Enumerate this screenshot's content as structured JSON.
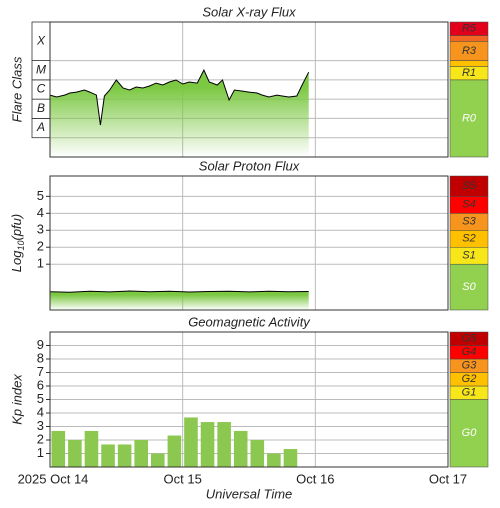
{
  "chart_data": [
    {
      "type": "line",
      "title": "Solar X-ray Flux",
      "ylabel": "Flare Class",
      "log_scale": true,
      "ylim": [
        1e-09,
        0.01
      ],
      "yticks": [
        1e-08,
        1e-07,
        1e-06,
        1e-05,
        0.0001
      ],
      "classes": [
        {
          "value": 1e-08,
          "label": "A"
        },
        {
          "value": 1e-07,
          "label": "B"
        },
        {
          "value": 1e-06,
          "label": "C"
        },
        {
          "value": 1e-05,
          "label": "M"
        },
        {
          "value": 0.0001,
          "label": "X"
        }
      ],
      "xlim": [
        0,
        3
      ],
      "xticks": [
        1,
        2
      ],
      "x": [
        0,
        0.05,
        0.11,
        0.15,
        0.2,
        0.26,
        0.3,
        0.35,
        0.38,
        0.41,
        0.45,
        0.5,
        0.55,
        0.6,
        0.65,
        0.7,
        0.75,
        0.8,
        0.85,
        0.9,
        0.95,
        1.0,
        1.05,
        1.11,
        1.16,
        1.2,
        1.26,
        1.3,
        1.35,
        1.39,
        1.45,
        1.5,
        1.56,
        1.6,
        1.65,
        1.71,
        1.75,
        1.8,
        1.86,
        1.9,
        1.95
      ],
      "values": [
        1.63e-06,
        1.29e-06,
        1.63e-06,
        2.07e-06,
        2.33e-06,
        2.97e-06,
        2.33e-06,
        1.63e-06,
        4.5e-08,
        1.45e-06,
        2.97e-06,
        9.8e-06,
        3.76e-06,
        2.97e-06,
        4.24e-06,
        3.76e-06,
        4.78e-06,
        6.8e-06,
        5.4e-06,
        7.7e-06,
        9.8e-06,
        6.1e-06,
        7.7e-06,
        6.8e-06,
        3.2e-05,
        7.7e-06,
        5.4e-06,
        9.8e-06,
        9e-07,
        2.97e-06,
        2.6e-06,
        2.33e-06,
        2.07e-06,
        1.63e-06,
        1.29e-06,
        1.63e-06,
        1.45e-06,
        1.29e-06,
        1.45e-06,
        5.4e-06,
        2.5e-05
      ],
      "color": "#000000",
      "fill_color": "#7cc843",
      "scale": [
        {
          "from": 1e-09,
          "label": "R0",
          "color": "#92d050"
        },
        {
          "from": 1e-05,
          "label": "R1",
          "color": "#f6e61a"
        },
        {
          "from": 5e-05,
          "color": "#ffc000"
        },
        {
          "from": 0.0001,
          "label": "R3",
          "color": "#f7941d"
        },
        {
          "from": 0.001,
          "color": "#f26522"
        },
        {
          "from": 0.002,
          "label": "R5",
          "color": "#e3001b"
        }
      ]
    },
    {
      "type": "line",
      "title": "Solar Proton Flux",
      "ylabel": {
        "main": "Log",
        "sub": "10",
        "unit": "(pfu)"
      },
      "ylim": [
        -1.7,
        6.2
      ],
      "yticks": [
        1,
        2,
        3,
        4,
        5
      ],
      "xlim": [
        0,
        3
      ],
      "xticks": [
        1,
        2
      ],
      "x": [
        0,
        0.15,
        0.3,
        0.45,
        0.6,
        0.75,
        0.9,
        1.05,
        1.2,
        1.35,
        1.5,
        1.65,
        1.8,
        1.95
      ],
      "values": [
        -0.62,
        -0.65,
        -0.6,
        -0.63,
        -0.58,
        -0.62,
        -0.6,
        -0.64,
        -0.61,
        -0.59,
        -0.63,
        -0.6,
        -0.62,
        -0.61
      ],
      "color": "#000000",
      "fill_color": "#7cc843",
      "scale": [
        {
          "from": -1.7,
          "label": "S0",
          "color": "#92d050"
        },
        {
          "from": 1,
          "label": "S1",
          "color": "#f6e61a"
        },
        {
          "from": 2,
          "label": "S2",
          "color": "#ffc000"
        },
        {
          "from": 3,
          "label": "S3",
          "color": "#f7941d"
        },
        {
          "from": 4,
          "label": "S4",
          "color": "#ff0000"
        },
        {
          "from": 5,
          "label": "S5",
          "color": "#c00000"
        }
      ]
    },
    {
      "type": "bar",
      "title": "Geomagnetic Activity",
      "ylabel": "Kp index",
      "xlabel": "Universal Time",
      "ylim": [
        0,
        10
      ],
      "yticks": [
        1,
        2,
        3,
        4,
        5,
        6,
        7,
        8,
        9
      ],
      "xlim": [
        0,
        3
      ],
      "xticks": [
        {
          "value": 0,
          "label": "2025 Oct 14"
        },
        {
          "value": 1,
          "label": "Oct 15"
        },
        {
          "value": 2,
          "label": "Oct 16"
        },
        {
          "value": 3,
          "label": "Oct 17"
        }
      ],
      "x": [
        0,
        0.125,
        0.25,
        0.375,
        0.5,
        0.625,
        0.75,
        0.875,
        1.0,
        1.125,
        1.25,
        1.375,
        1.5,
        1.625,
        1.75
      ],
      "values": [
        2.67,
        2,
        2.67,
        1.67,
        1.67,
        2,
        1,
        2.33,
        3.67,
        3.33,
        3.33,
        2.67,
        2,
        1,
        1.33
      ],
      "color": "#8cc850",
      "scale": [
        {
          "from": 0,
          "label": "G0",
          "color": "#92d050"
        },
        {
          "from": 5,
          "label": "G1",
          "color": "#f6e61a"
        },
        {
          "from": 6,
          "label": "G2",
          "color": "#ffc000"
        },
        {
          "from": 7,
          "label": "G3",
          "color": "#f7941d"
        },
        {
          "from": 8,
          "label": "G4",
          "color": "#ff0000"
        },
        {
          "from": 9,
          "label": "G5",
          "color": "#c00000"
        }
      ]
    }
  ]
}
